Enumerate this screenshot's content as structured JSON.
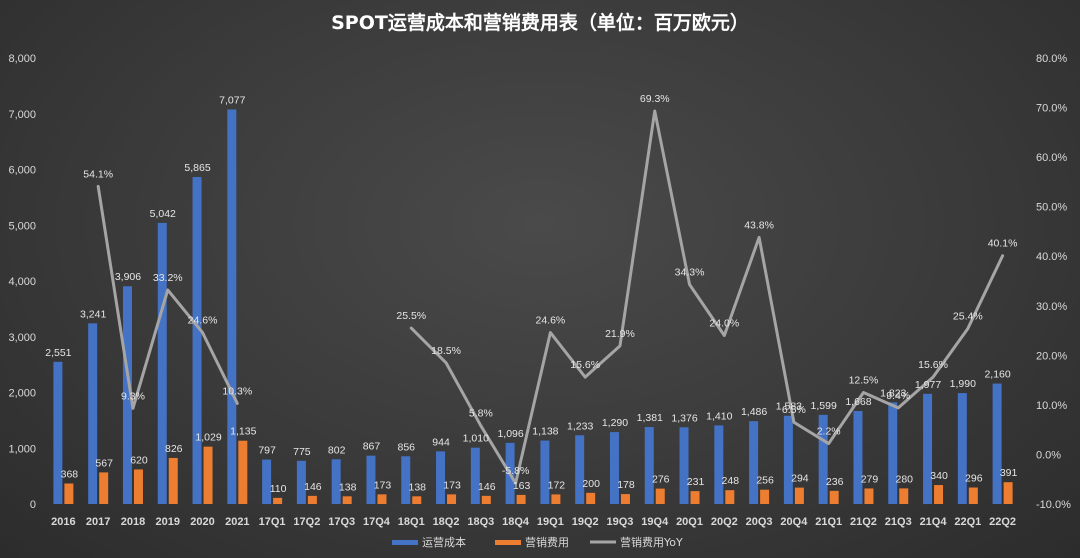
{
  "title": "SPOT运营成本和营销费用表（单位：百万欧元）",
  "chart_data": {
    "type": "bar+line",
    "categories": [
      "2016",
      "2017",
      "2018",
      "2019",
      "2020",
      "2021",
      "17Q1",
      "17Q2",
      "17Q3",
      "17Q4",
      "18Q1",
      "18Q2",
      "18Q3",
      "18Q4",
      "19Q1",
      "19Q2",
      "19Q3",
      "19Q4",
      "20Q1",
      "20Q2",
      "20Q3",
      "20Q4",
      "21Q1",
      "21Q2",
      "21Q3",
      "21Q4",
      "22Q1",
      "22Q2"
    ],
    "series": [
      {
        "name": "运营成本",
        "type": "bar",
        "axis": "left",
        "color": "#4472c4",
        "values": [
          2551,
          3241,
          3906,
          5042,
          5865,
          7077,
          797,
          775,
          802,
          867,
          856,
          944,
          1010,
          1096,
          1138,
          1233,
          1290,
          1381,
          1376,
          1410,
          1486,
          1583,
          1599,
          1668,
          1823,
          1977,
          1990,
          2160
        ],
        "labels": [
          "2,551",
          "3,241",
          "3,906",
          "5,042",
          "5,865",
          "7,077",
          "797",
          "775",
          "802",
          "867",
          "856",
          "944",
          "1,010",
          "1,096",
          "1,138",
          "1,233",
          "1,290",
          "1,381",
          "1,376",
          "1,410",
          "1,486",
          "1,583",
          "1,599",
          "1,668",
          "1,823",
          "1,977",
          "1,990",
          "2,160"
        ]
      },
      {
        "name": "营销费用",
        "type": "bar",
        "axis": "left",
        "color": "#ed7d31",
        "values": [
          368,
          567,
          620,
          826,
          1029,
          1135,
          110,
          146,
          138,
          173,
          138,
          173,
          146,
          163,
          172,
          200,
          178,
          276,
          231,
          248,
          256,
          294,
          236,
          279,
          280,
          340,
          296,
          391
        ],
        "labels": [
          "368",
          "567",
          "620",
          "826",
          "1,029",
          "1,135",
          "110",
          "146",
          "138",
          "173",
          "138",
          "173",
          "146",
          "163",
          "172",
          "200",
          "178",
          "276",
          "231",
          "248",
          "256",
          "294",
          "236",
          "279",
          "280",
          "340",
          "296",
          "391"
        ]
      },
      {
        "name": "营销费用YoY",
        "type": "line",
        "axis": "right",
        "color": "#a5a5a5",
        "values": [
          null,
          54.1,
          9.3,
          33.2,
          24.6,
          10.3,
          null,
          null,
          null,
          null,
          25.5,
          18.5,
          5.8,
          -5.8,
          24.6,
          15.6,
          21.9,
          69.3,
          34.3,
          24.0,
          43.8,
          6.5,
          2.2,
          12.5,
          9.4,
          15.6,
          25.4,
          40.1
        ],
        "labels": [
          "",
          "54.1%",
          "9.3%",
          "33.2%",
          "24.6%",
          "10.3%",
          "",
          "",
          "",
          "",
          "25.5%",
          "18.5%",
          "5.8%",
          "-5.8%",
          "24.6%",
          "15.6%",
          "21.9%",
          "69.3%",
          "34.3%",
          "24.0%",
          "43.8%",
          "6.5%",
          "2.2%",
          "12.5%",
          "9.4%",
          "15.6%",
          "25.4%",
          "40.1%"
        ]
      }
    ],
    "y_left": {
      "min": 0,
      "max": 8000,
      "step": 1000,
      "ticks": [
        "0",
        "1,000",
        "2,000",
        "3,000",
        "4,000",
        "5,000",
        "6,000",
        "7,000",
        "8,000"
      ]
    },
    "y_right": {
      "min": -10,
      "max": 80,
      "step": 10,
      "ticks": [
        "-10.0%",
        "0.0%",
        "10.0%",
        "20.0%",
        "30.0%",
        "40.0%",
        "50.0%",
        "60.0%",
        "70.0%",
        "80.0%"
      ]
    },
    "grid": false,
    "legend": {
      "position": "bottom"
    }
  }
}
